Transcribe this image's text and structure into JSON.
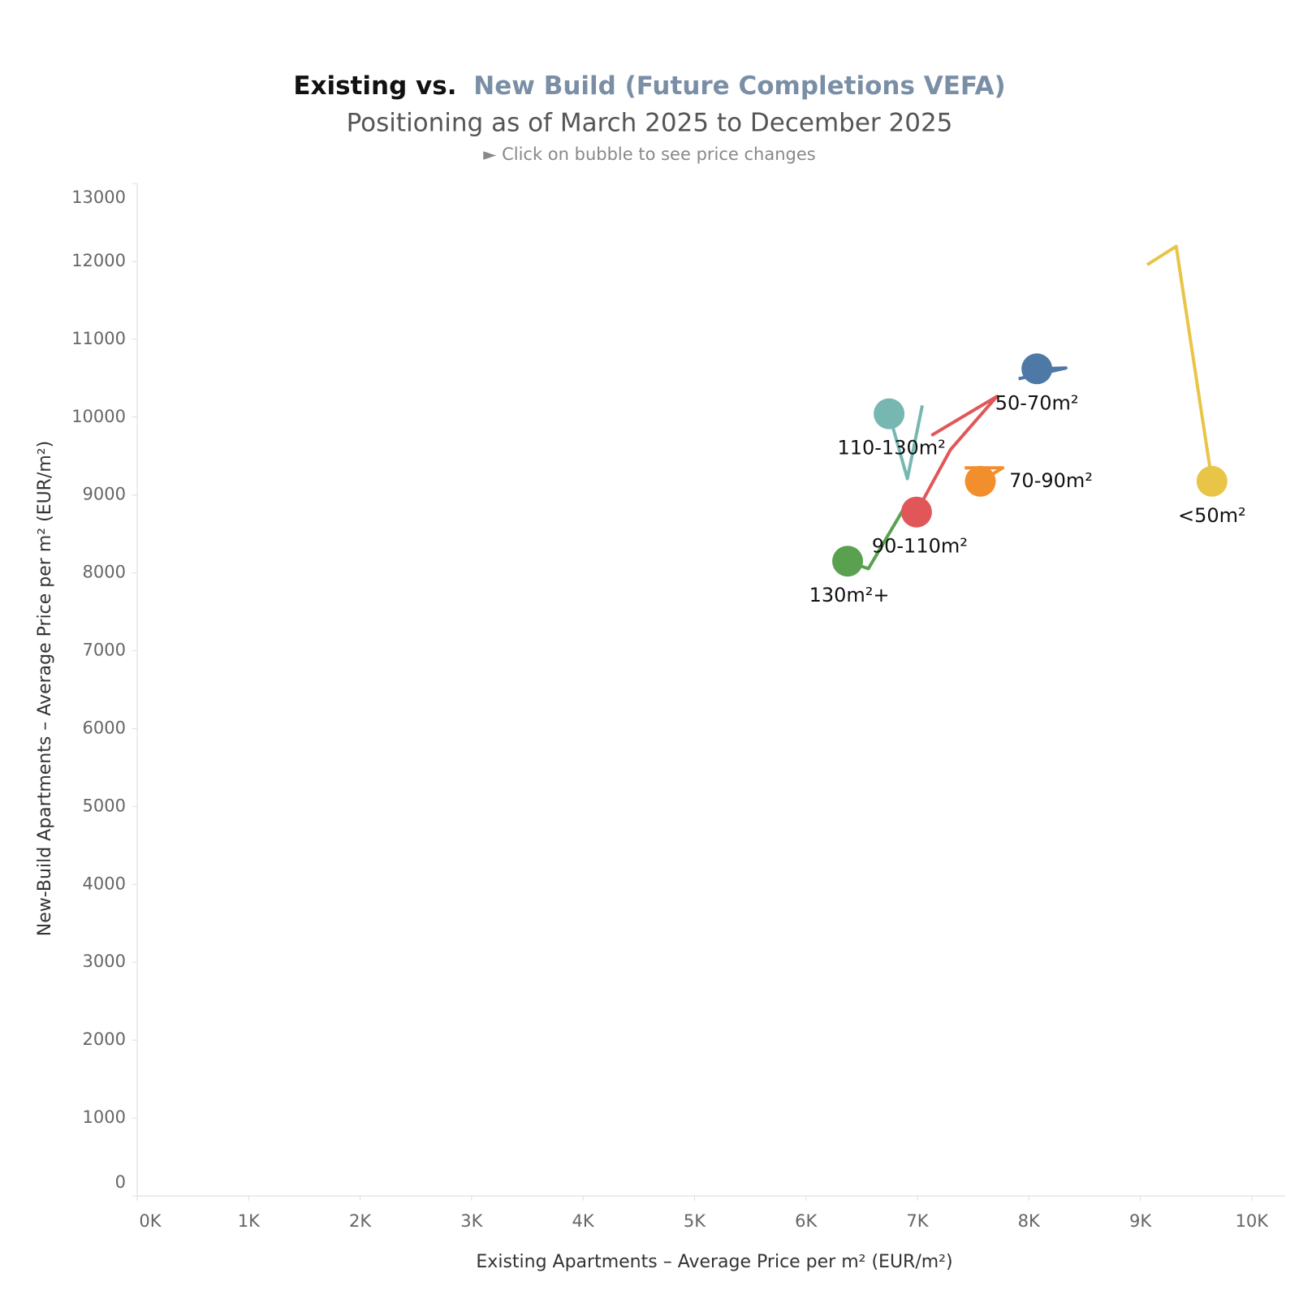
{
  "chart_data": {
    "type": "scatter",
    "title_parts": [
      {
        "text": "Existing vs.",
        "color": "#111111"
      },
      {
        "text": "New Build (Future Completions VEFA)",
        "color": "#7a8fa6"
      }
    ],
    "subtitle": "Positioning as of March 2025 to December 2025",
    "note": "► Click on bubble to see price changes",
    "x_label": "Existing Apartments – Average Price per m² (EUR/m²)",
    "y_label": "New-Build Apartments – Average Price per m² (EUR/m²)",
    "xlim": [
      0,
      10300
    ],
    "ylim": [
      0,
      13000
    ],
    "xticks": [
      {
        "value": 0,
        "label": "0K"
      },
      {
        "value": 1000,
        "label": "1K"
      },
      {
        "value": 2000,
        "label": "2K"
      },
      {
        "value": 3000,
        "label": "3K"
      },
      {
        "value": 4000,
        "label": "4K"
      },
      {
        "value": 5000,
        "label": "5K"
      },
      {
        "value": 6000,
        "label": "6K"
      },
      {
        "value": 7000,
        "label": "7K"
      },
      {
        "value": 8000,
        "label": "8K"
      },
      {
        "value": 9000,
        "label": "9K"
      },
      {
        "value": 10000,
        "label": "10K"
      }
    ],
    "yticks": [
      0,
      1000,
      2000,
      3000,
      4000,
      5000,
      6000,
      7000,
      8000,
      9000,
      10000,
      11000,
      12000,
      13000
    ],
    "grid": false,
    "series": [
      {
        "name": "<50m²",
        "color": "#e8c547",
        "x": [
          9062,
          9322,
          9643
        ],
        "values": [
          11957,
          12193,
          9176
        ]
      },
      {
        "name": "50-70m²",
        "color": "#4e79a7",
        "x": [
          7908,
          8332,
          8072
        ],
        "values": [
          10492,
          10631,
          10620
        ]
      },
      {
        "name": "70-90m²",
        "color": "#f28e2b",
        "x": [
          7424,
          7766,
          7565
        ],
        "values": [
          9348,
          9348,
          9176
        ]
      },
      {
        "name": "90-110m²",
        "color": "#e15759",
        "x": [
          7126,
          7714,
          7297,
          6992
        ],
        "values": [
          9765,
          10267,
          9583,
          8781
        ]
      },
      {
        "name": "110-130m²",
        "color": "#76b7b2",
        "x": [
          7044,
          6910,
          6746
        ],
        "values": [
          10150,
          9209,
          10043
        ]
      },
      {
        "name": "130m²+",
        "color": "#59a14f",
        "x": [
          6873,
          6560,
          6374
        ],
        "values": [
          8813,
          8053,
          8150
        ]
      }
    ]
  }
}
